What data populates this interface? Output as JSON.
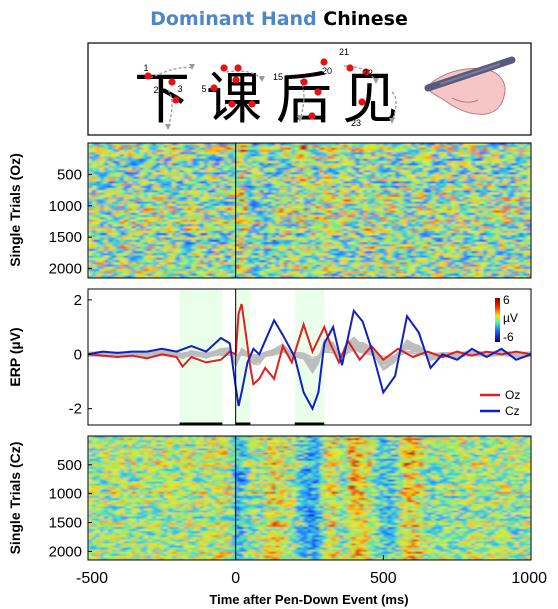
{
  "title": {
    "part1": "Dominant Hand",
    "part2": " Chinese"
  },
  "colors": {
    "title_accent": "#4f86c6",
    "oz": "#e02020",
    "cz": "#1020c0",
    "grey_traces": "#bdbdbd",
    "shade": "#eaffea"
  },
  "stimulus": {
    "characters": [
      "下",
      "课",
      "后",
      "见"
    ],
    "stroke_numbers": [
      "1",
      "2",
      "3",
      "5",
      "15",
      "20",
      "21",
      "22",
      "23"
    ],
    "icon": "hand-writing-stylus-icon"
  },
  "chart_data": [
    {
      "type": "heatmap",
      "panel": "single-trials-oz",
      "ylabel": "Single Trials (Oz)",
      "ytick_labels": [
        "500",
        "1000",
        "1500",
        "2000"
      ],
      "yticks": [
        500,
        1000,
        1500,
        2000
      ],
      "ylim": [
        1,
        2150
      ],
      "xlim": [
        -500,
        1000
      ],
      "event_line_x": 0
    },
    {
      "type": "line",
      "panel": "erp",
      "ylabel": "ERP (µV)",
      "xlim": [
        -500,
        1000
      ],
      "ylim": [
        -2.6,
        2.4
      ],
      "ytick_labels": [
        "2",
        "0",
        "-2"
      ],
      "yticks": [
        2,
        0,
        -2
      ],
      "shaded_windows": [
        [
          -190,
          -45
        ],
        [
          0,
          50
        ],
        [
          200,
          300
        ]
      ],
      "significance_bars": [
        [
          -190,
          -45
        ],
        [
          0,
          50
        ],
        [
          200,
          300
        ]
      ],
      "legend": {
        "placement": "bottom-right",
        "entries": [
          "Oz",
          "Cz"
        ]
      },
      "colorbar": {
        "labels": [
          "6",
          "µV",
          "-6"
        ],
        "range": [
          -6,
          6
        ]
      },
      "series": [
        {
          "name": "Oz",
          "color": "#e02020",
          "x": [
            -500,
            -450,
            -400,
            -350,
            -300,
            -250,
            -200,
            -180,
            -150,
            -100,
            -50,
            -20,
            0,
            10,
            20,
            35,
            50,
            60,
            80,
            100,
            130,
            160,
            190,
            230,
            260,
            300,
            320,
            350,
            380,
            420,
            460,
            500,
            550,
            600,
            650,
            700,
            750,
            800,
            850,
            900,
            950,
            1000
          ],
          "y": [
            0,
            -0.05,
            -0.1,
            -0.05,
            -0.15,
            0,
            -0.1,
            -0.45,
            -0.1,
            -0.3,
            -0.2,
            0.1,
            0,
            1.5,
            1.85,
            0.7,
            -0.5,
            -1.1,
            -0.9,
            -0.5,
            -0.9,
            0.3,
            -0.3,
            1.1,
            0.1,
            1.0,
            0.4,
            -0.3,
            0.5,
            -0.2,
            0.3,
            -0.2,
            0.2,
            -0.1,
            0.1,
            -0.1,
            0.1,
            -0.05,
            0.1,
            0,
            0.1,
            0
          ]
        },
        {
          "name": "Cz",
          "color": "#1020c0",
          "x": [
            -500,
            -450,
            -400,
            -350,
            -300,
            -250,
            -200,
            -150,
            -100,
            -50,
            -20,
            0,
            10,
            20,
            40,
            60,
            80,
            100,
            130,
            160,
            200,
            230,
            260,
            280,
            300,
            330,
            360,
            400,
            430,
            460,
            500,
            540,
            580,
            620,
            660,
            700,
            750,
            800,
            850,
            900,
            950,
            1000
          ],
          "y": [
            0,
            0.1,
            0.05,
            0.1,
            0.1,
            0.2,
            0.1,
            0.3,
            0.1,
            0.6,
            0.4,
            -1.2,
            -1.9,
            -1.4,
            -0.3,
            0.2,
            0,
            0.5,
            1.25,
            0.7,
            -0.1,
            -1.4,
            -2.0,
            -1.4,
            0.4,
            1.0,
            -0.4,
            1.6,
            1.2,
            0.2,
            -1.4,
            -0.8,
            1.4,
            0.8,
            -0.5,
            0,
            -0.2,
            0.2,
            -0.1,
            0.2,
            -0.2,
            0
          ]
        }
      ]
    },
    {
      "type": "heatmap",
      "panel": "single-trials-cz",
      "ylabel": "Single Trials (Cz)",
      "xlabel": "Time after Pen-Down Event (ms)",
      "ytick_labels": [
        "500",
        "1000",
        "1500",
        "2000"
      ],
      "yticks": [
        500,
        1000,
        1500,
        2000
      ],
      "ylim": [
        1,
        2150
      ],
      "xlim": [
        -500,
        1000
      ],
      "xticks": [
        -500,
        0,
        500,
        1000
      ],
      "xtick_labels": [
        "-500",
        "0",
        "500",
        "1000"
      ],
      "event_line_x": 0
    }
  ]
}
